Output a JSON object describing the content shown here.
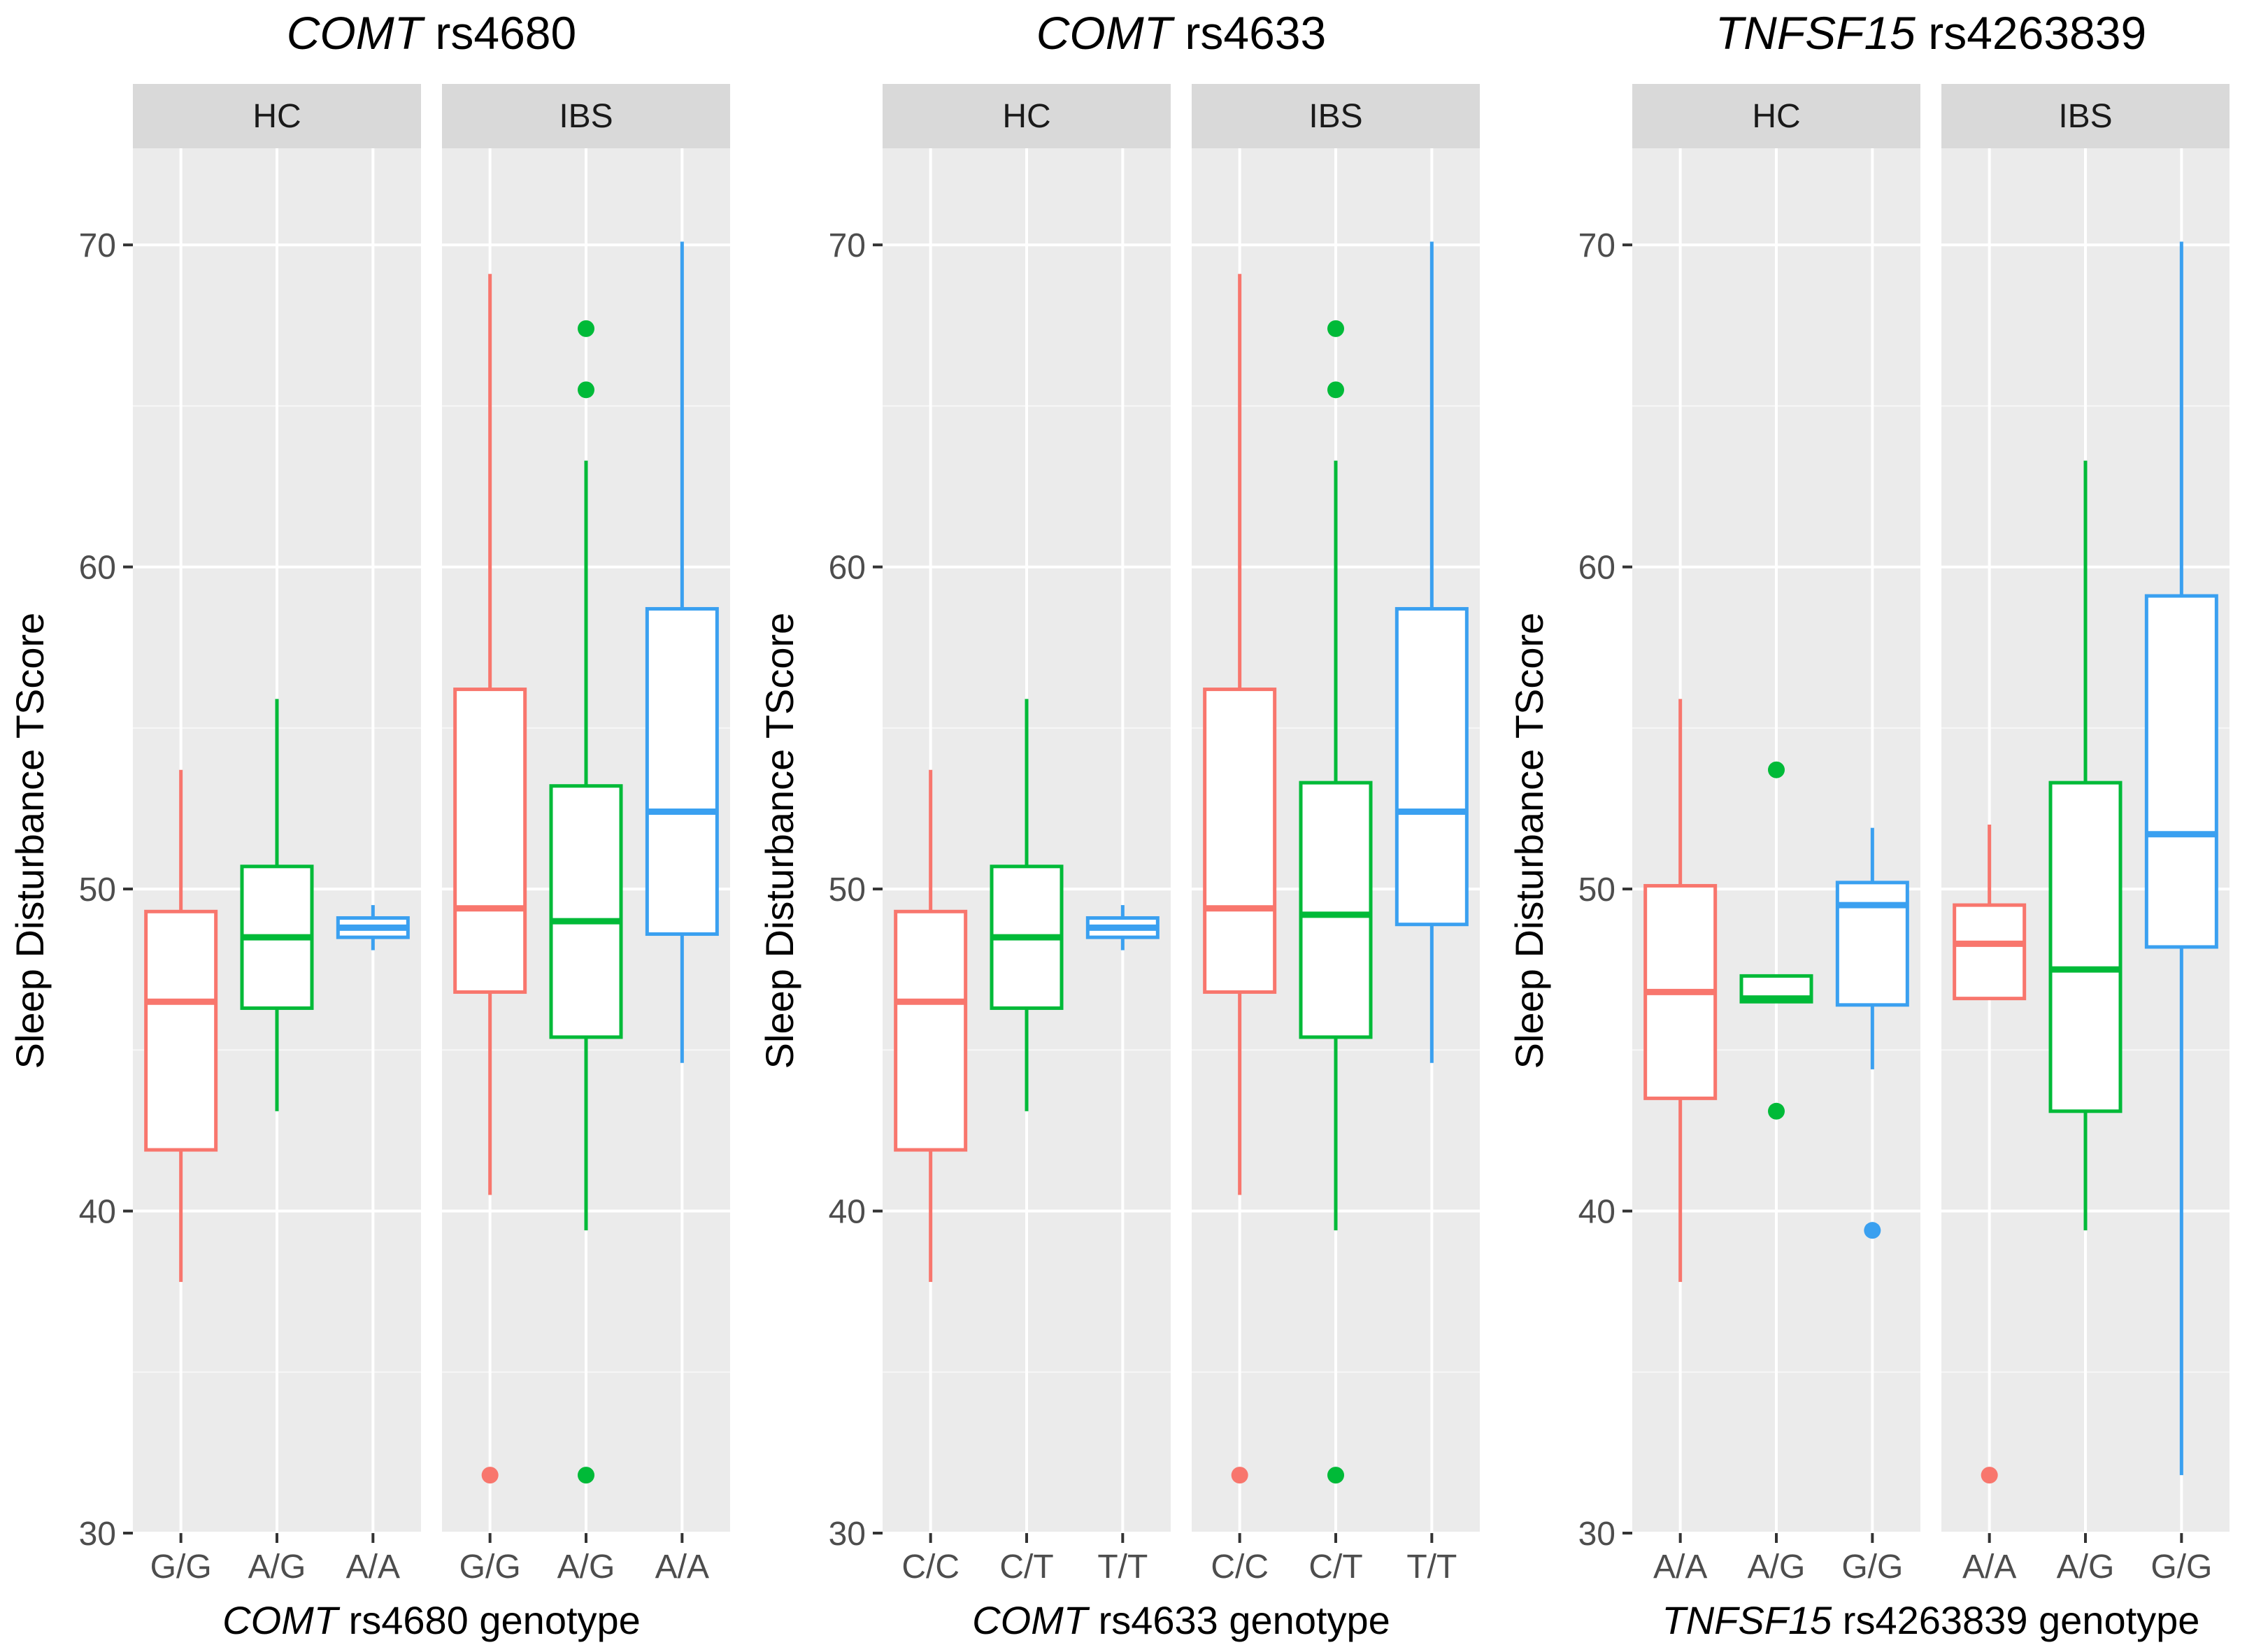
{
  "ylabel": "Sleep Disturbance TScore",
  "ylim": [
    30,
    73
  ],
  "yticks": [
    30,
    40,
    50,
    60,
    70
  ],
  "colors": [
    "#F8766D",
    "#00BA38",
    "#3AA0F0"
  ],
  "chart_data": [
    {
      "type": "boxplot",
      "title_gene": "COMT",
      "title_snp": "rs4680",
      "xlabel_gene": "COMT",
      "xlabel_rest": "rs4680 genotype",
      "ylabel": "Sleep Disturbance TScore",
      "categories": [
        "G/G",
        "A/G",
        "A/A"
      ],
      "facets": [
        {
          "name": "HC",
          "boxes": [
            {
              "category": "G/G",
              "min": 37.8,
              "q1": 41.9,
              "median": 46.5,
              "q3": 49.3,
              "max": 53.7,
              "outliers": []
            },
            {
              "category": "A/G",
              "min": 43.1,
              "q1": 46.3,
              "median": 48.5,
              "q3": 50.7,
              "max": 55.9,
              "outliers": []
            },
            {
              "category": "A/A",
              "min": 48.1,
              "q1": 48.5,
              "median": 48.8,
              "q3": 49.1,
              "max": 49.5,
              "outliers": []
            }
          ]
        },
        {
          "name": "IBS",
          "boxes": [
            {
              "category": "G/G",
              "min": 40.5,
              "q1": 46.8,
              "median": 49.4,
              "q3": 56.2,
              "max": 69.1,
              "outliers": [
                31.8
              ]
            },
            {
              "category": "A/G",
              "min": 39.4,
              "q1": 45.4,
              "median": 49.0,
              "q3": 53.2,
              "max": 63.3,
              "outliers": [
                67.4,
                65.5,
                31.8
              ]
            },
            {
              "category": "A/A",
              "min": 44.6,
              "q1": 48.6,
              "median": 52.4,
              "q3": 58.7,
              "max": 70.1,
              "outliers": []
            }
          ]
        }
      ]
    },
    {
      "type": "boxplot",
      "title_gene": "COMT",
      "title_snp": "rs4633",
      "xlabel_gene": "COMT",
      "xlabel_rest": "rs4633 genotype",
      "ylabel": "Sleep Disturbance TScore",
      "categories": [
        "C/C",
        "C/T",
        "T/T"
      ],
      "facets": [
        {
          "name": "HC",
          "boxes": [
            {
              "category": "C/C",
              "min": 37.8,
              "q1": 41.9,
              "median": 46.5,
              "q3": 49.3,
              "max": 53.7,
              "outliers": []
            },
            {
              "category": "C/T",
              "min": 43.1,
              "q1": 46.3,
              "median": 48.5,
              "q3": 50.7,
              "max": 55.9,
              "outliers": []
            },
            {
              "category": "T/T",
              "min": 48.1,
              "q1": 48.5,
              "median": 48.8,
              "q3": 49.1,
              "max": 49.5,
              "outliers": []
            }
          ]
        },
        {
          "name": "IBS",
          "boxes": [
            {
              "category": "C/C",
              "min": 40.5,
              "q1": 46.8,
              "median": 49.4,
              "q3": 56.2,
              "max": 69.1,
              "outliers": [
                31.8
              ]
            },
            {
              "category": "C/T",
              "min": 39.4,
              "q1": 45.4,
              "median": 49.2,
              "q3": 53.3,
              "max": 63.3,
              "outliers": [
                67.4,
                65.5,
                31.8
              ]
            },
            {
              "category": "T/T",
              "min": 44.6,
              "q1": 48.9,
              "median": 52.4,
              "q3": 58.7,
              "max": 70.1,
              "outliers": []
            }
          ]
        }
      ]
    },
    {
      "type": "boxplot",
      "title_gene": "TNFSF15",
      "title_snp": "rs4263839",
      "xlabel_gene": "TNFSF15",
      "xlabel_rest": "rs4263839 genotype",
      "ylabel": "Sleep Disturbance TScore",
      "categories": [
        "A/A",
        "A/G",
        "G/G"
      ],
      "facets": [
        {
          "name": "HC",
          "boxes": [
            {
              "category": "A/A",
              "min": 37.8,
              "q1": 43.5,
              "median": 46.8,
              "q3": 50.1,
              "max": 55.9,
              "outliers": []
            },
            {
              "category": "A/G",
              "min": 46.5,
              "q1": 46.5,
              "median": 46.6,
              "q3": 47.3,
              "max": 47.3,
              "outliers": [
                53.7,
                43.1
              ]
            },
            {
              "category": "G/G",
              "min": 44.4,
              "q1": 46.4,
              "median": 49.5,
              "q3": 50.2,
              "max": 51.9,
              "outliers": [
                39.4
              ]
            }
          ]
        },
        {
          "name": "IBS",
          "boxes": [
            {
              "category": "A/A",
              "min": 46.6,
              "q1": 46.6,
              "median": 48.3,
              "q3": 49.5,
              "max": 52.0,
              "outliers": [
                31.8
              ]
            },
            {
              "category": "A/G",
              "min": 39.4,
              "q1": 43.1,
              "median": 47.5,
              "q3": 53.3,
              "max": 63.3,
              "outliers": []
            },
            {
              "category": "G/G",
              "min": 31.8,
              "q1": 48.2,
              "median": 51.7,
              "q3": 59.1,
              "max": 70.1,
              "outliers": []
            }
          ]
        }
      ]
    }
  ]
}
